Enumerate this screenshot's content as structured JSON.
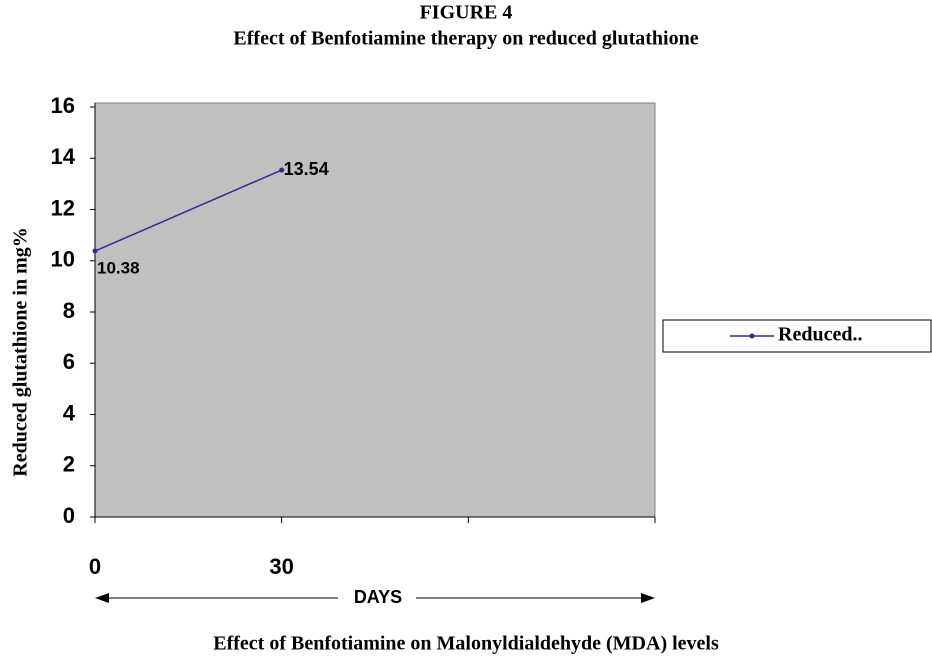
{
  "chart_data": {
    "type": "line",
    "title": "FIGURE 4",
    "subtitle": "Effect of Benfotiamine therapy on reduced glutathione",
    "y_label": "Reduced glutathione in mg%",
    "x_label": "DAYS",
    "categories": [
      "0",
      "30",
      null,
      null
    ],
    "series": [
      {
        "name": "Reduced..",
        "color": "#2b2b96",
        "values": [
          10.38,
          13.54,
          null,
          null
        ]
      }
    ],
    "ylim": [
      0,
      16
    ],
    "yticks": [
      0,
      2,
      4,
      6,
      8,
      10,
      12,
      14,
      16
    ],
    "plot_background": "#c0c0c0",
    "legend": "right",
    "grid": false
  },
  "caption": "Effect of Benfotiamine on Malonyldialdehyde (MDA) levels"
}
